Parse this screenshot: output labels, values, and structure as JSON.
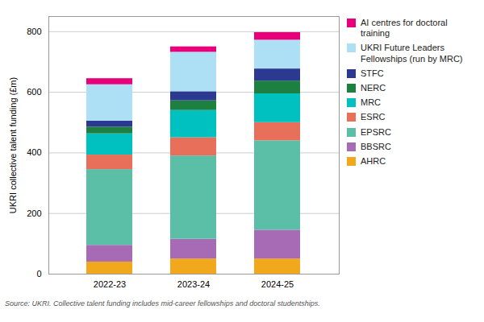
{
  "chart_data": {
    "type": "bar",
    "stacked": true,
    "categories": [
      "2022-23",
      "2023-24",
      "2024-25"
    ],
    "series": [
      {
        "name": "AHRC",
        "color": "#F2A81D",
        "values": [
          40,
          50,
          50
        ]
      },
      {
        "name": "BBSRC",
        "color": "#A66BB4",
        "values": [
          55,
          65,
          95
        ]
      },
      {
        "name": "EPSRC",
        "color": "#5BBFA8",
        "values": [
          250,
          275,
          295
        ]
      },
      {
        "name": "ESRC",
        "color": "#E8705A",
        "values": [
          48,
          60,
          60
        ]
      },
      {
        "name": "MRC",
        "color": "#00C0C0",
        "values": [
          70,
          90,
          95
        ]
      },
      {
        "name": "NERC",
        "color": "#1E8040",
        "values": [
          22,
          32,
          42
        ]
      },
      {
        "name": "STFC",
        "color": "#2B3990",
        "values": [
          20,
          30,
          40
        ]
      },
      {
        "name": "UKRI Future Leaders Fellowships (run by MRC)",
        "color": "#ADE0F5",
        "values": [
          120,
          130,
          95
        ]
      },
      {
        "name": "AI centres for doctoral training",
        "color": "#E8007A",
        "values": [
          20,
          18,
          25
        ]
      }
    ],
    "ylabel": "UKRI collective talent funding (£m)",
    "ylim": [
      0,
      850
    ],
    "yticks": [
      0,
      200,
      400,
      600,
      800
    ],
    "grid": true,
    "legend": "right",
    "caption": "Source: UKRI. Collective talent funding includes mid-career fellowships and doctoral studentships."
  }
}
